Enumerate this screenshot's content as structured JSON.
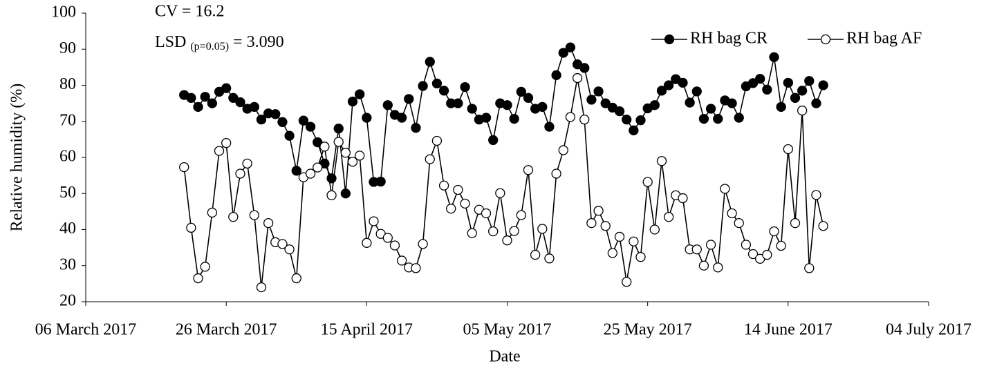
{
  "chart_data": {
    "type": "line",
    "annotations": [
      "CV = 16.2",
      "LSD",
      "(p=0.05)",
      " = 3.090"
    ],
    "x_label": "Date",
    "y_label": "Relative humidity (%)",
    "legend_position": "top-right",
    "x": [
      "2017-03-20",
      "2017-03-21",
      "2017-03-22",
      "2017-03-23",
      "2017-03-24",
      "2017-03-25",
      "2017-03-26",
      "2017-03-27",
      "2017-03-28",
      "2017-03-29",
      "2017-03-30",
      "2017-03-31",
      "2017-04-01",
      "2017-04-02",
      "2017-04-03",
      "2017-04-04",
      "2017-04-05",
      "2017-04-06",
      "2017-04-07",
      "2017-04-08",
      "2017-04-09",
      "2017-04-10",
      "2017-04-11",
      "2017-04-12",
      "2017-04-13",
      "2017-04-14",
      "2017-04-15",
      "2017-04-16",
      "2017-04-17",
      "2017-04-18",
      "2017-04-19",
      "2017-04-20",
      "2017-04-21",
      "2017-04-22",
      "2017-04-23",
      "2017-04-24",
      "2017-04-25",
      "2017-04-26",
      "2017-04-27",
      "2017-04-28",
      "2017-04-29",
      "2017-04-30",
      "2017-05-01",
      "2017-05-02",
      "2017-05-03",
      "2017-05-04",
      "2017-05-05",
      "2017-05-06",
      "2017-05-07",
      "2017-05-08",
      "2017-05-09",
      "2017-05-10",
      "2017-05-11",
      "2017-05-12",
      "2017-05-13",
      "2017-05-14",
      "2017-05-15",
      "2017-05-16",
      "2017-05-17",
      "2017-05-18",
      "2017-05-19",
      "2017-05-20",
      "2017-05-21",
      "2017-05-22",
      "2017-05-23",
      "2017-05-24",
      "2017-05-25",
      "2017-05-26",
      "2017-05-27",
      "2017-05-28",
      "2017-05-29",
      "2017-05-30",
      "2017-05-31",
      "2017-06-01",
      "2017-06-02",
      "2017-06-03",
      "2017-06-04",
      "2017-06-05",
      "2017-06-06",
      "2017-06-07",
      "2017-06-08",
      "2017-06-09",
      "2017-06-10",
      "2017-06-11",
      "2017-06-12",
      "2017-06-13",
      "2017-06-14",
      "2017-06-15",
      "2017-06-16",
      "2017-06-17",
      "2017-06-18",
      "2017-06-19"
    ],
    "series": [
      {
        "name": "RH bag CR",
        "color": "#000000",
        "marker_fill": "#000000",
        "values": [
          77.3,
          76.5,
          74,
          76.8,
          75,
          78.2,
          79.2,
          76.5,
          75.3,
          73.5,
          74,
          70.5,
          72.2,
          72,
          69.8,
          66,
          56.3,
          70.2,
          68.5,
          64.2,
          58.3,
          54.2,
          68,
          50,
          75.5,
          77.5,
          71,
          53.2,
          53.3,
          74.5,
          71.8,
          71,
          76.2,
          68.2,
          79.8,
          86.5,
          80.5,
          78.5,
          75,
          75,
          79.5,
          73.5,
          70.5,
          71,
          64.8,
          75,
          74.5,
          70.7,
          78.2,
          76.5,
          73.5,
          74,
          68.5,
          82.8,
          89,
          90.5,
          85.8,
          84.8,
          76,
          78.3,
          75,
          73.8,
          72.8,
          70.5,
          67.5,
          70.3,
          73.6,
          74.5,
          78.5,
          80,
          81.7,
          80.7,
          75.2,
          78.3,
          70.7,
          73.5,
          70.7,
          75.8,
          75,
          71,
          79.7,
          80.6,
          81.8,
          78.8,
          87.8,
          74,
          80.7,
          76.5,
          78.5,
          81.2,
          75,
          80
        ]
      },
      {
        "name": "RH bag AF",
        "color": "#000000",
        "marker_fill": "#ffffff",
        "values": [
          57.3,
          40.5,
          26.5,
          29.7,
          44.7,
          61.8,
          64,
          43.5,
          55.5,
          58.3,
          44,
          24,
          41.8,
          36.5,
          36,
          34.5,
          26.5,
          54.5,
          55.5,
          57.2,
          63,
          49.5,
          64.3,
          61.3,
          58.8,
          60.5,
          36.3,
          42.3,
          38.8,
          37.7,
          35.6,
          31.4,
          29.5,
          29.3,
          36,
          59.5,
          64.6,
          52.2,
          45.8,
          51,
          47.2,
          39,
          45.5,
          44.5,
          39.5,
          50.1,
          37,
          39.6,
          44,
          56.5,
          33,
          40.2,
          32,
          55.5,
          62,
          71.2,
          82,
          70.5,
          41.8,
          45.2,
          41,
          33.5,
          38,
          25.5,
          36.7,
          32.4,
          53.2,
          40,
          59,
          43.5,
          49.5,
          48.7,
          34.5,
          34.5,
          30,
          35.8,
          29.5,
          51.3,
          44.5,
          41.8,
          35.8,
          33.2,
          31.9,
          33,
          39.5,
          35.5,
          62.3,
          41.8,
          73,
          29.3,
          49.6,
          41
        ]
      }
    ],
    "xlim": [
      "2017-03-06",
      "2017-07-04"
    ],
    "xticks": [
      {
        "value": "2017-03-06",
        "label": "06 March 2017"
      },
      {
        "value": "2017-03-26",
        "label": "26 March 2017"
      },
      {
        "value": "2017-04-15",
        "label": "15 April 2017"
      },
      {
        "value": "2017-05-05",
        "label": "05 May 2017"
      },
      {
        "value": "2017-05-25",
        "label": "25 May 2017"
      },
      {
        "value": "2017-06-14",
        "label": "14 June 2017"
      },
      {
        "value": "2017-07-04",
        "label": "04 July 2017"
      }
    ],
    "ylim": [
      20,
      100
    ],
    "yticks": [
      20,
      30,
      40,
      50,
      60,
      70,
      80,
      90,
      100
    ]
  }
}
